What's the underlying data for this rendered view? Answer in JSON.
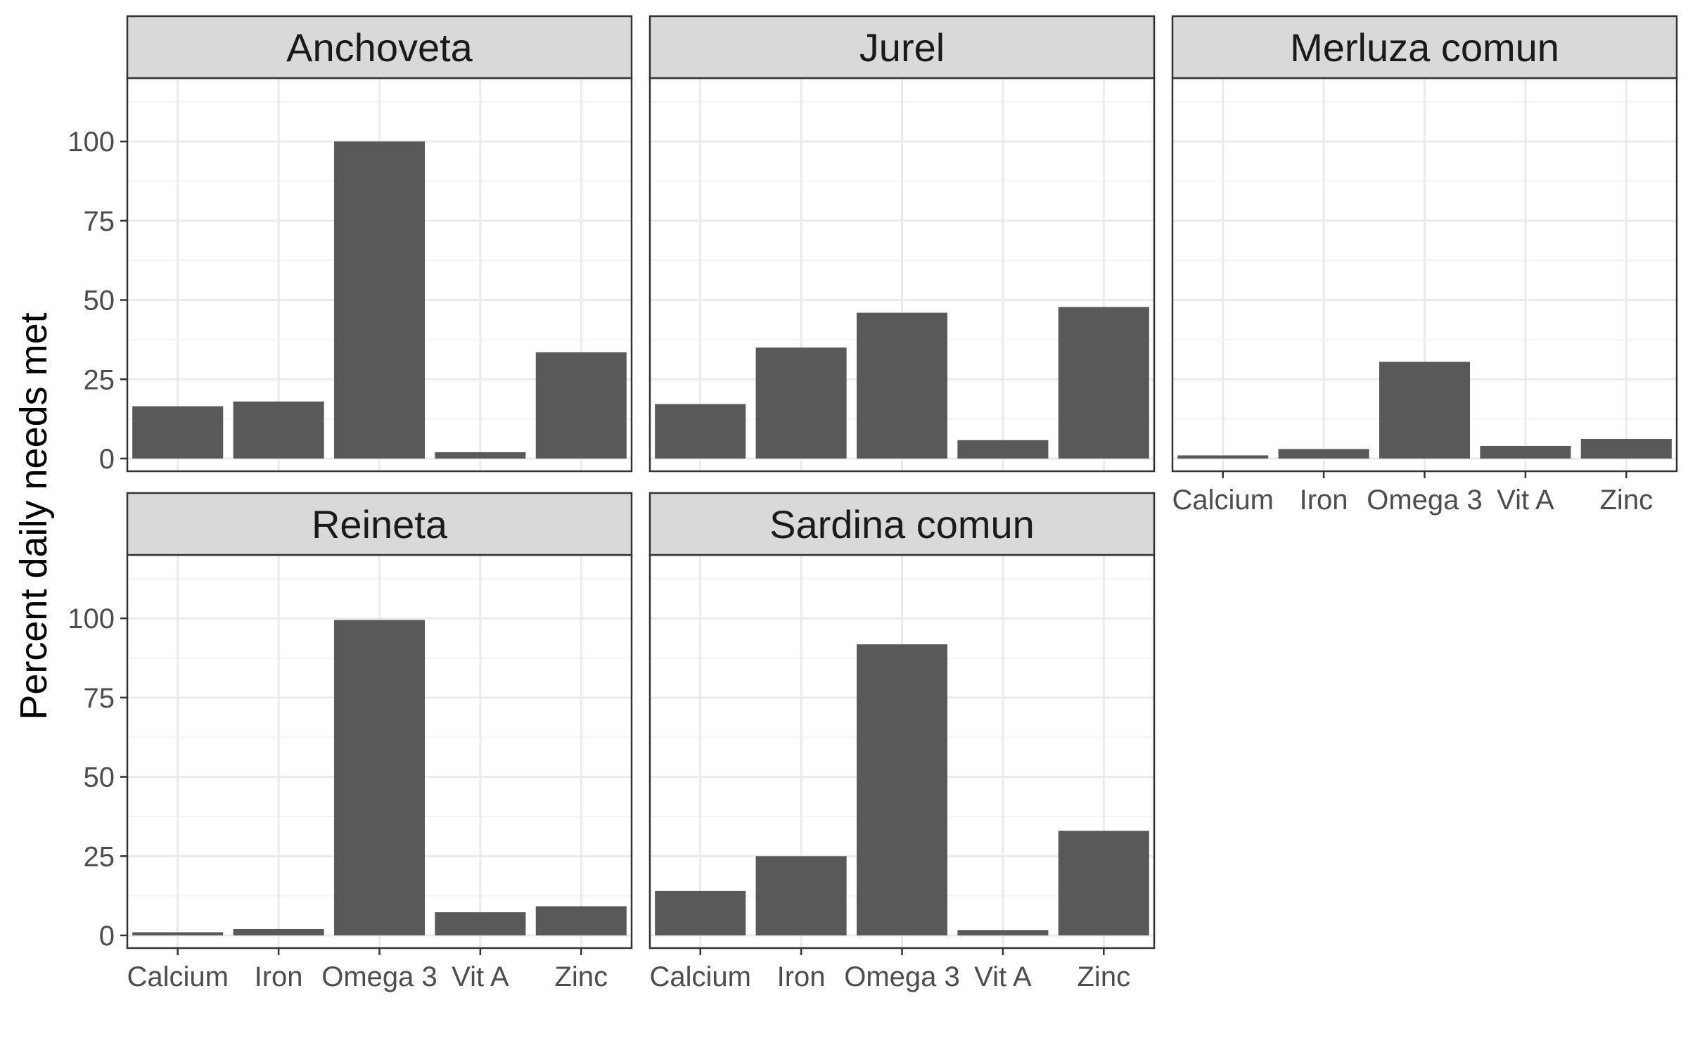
{
  "chart_data": {
    "type": "bar",
    "layout": "facet_wrap",
    "facet_columns": 3,
    "ylabel": "Percent daily needs met",
    "xlabel": "",
    "ylim": [
      -4,
      120
    ],
    "y_ticks": [
      0,
      25,
      50,
      75,
      100
    ],
    "categories": [
      "Calcium",
      "Iron",
      "Omega 3",
      "Vit A",
      "Zinc"
    ],
    "grid": true,
    "legend": "none",
    "colors": {
      "bar": "#595959",
      "strip_background": "#d9d9d9",
      "panel_border": "#333333",
      "grid_major": "#ebebeb",
      "grid_minor": "#f4f4f4",
      "tick_label": "#4d4d4d"
    },
    "facets": [
      {
        "title": "Anchoveta",
        "values": [
          16.5,
          18,
          100,
          2,
          33.5
        ]
      },
      {
        "title": "Jurel",
        "values": [
          17.2,
          35,
          46,
          5.8,
          47.8
        ]
      },
      {
        "title": "Merluza comun",
        "values": [
          1,
          3,
          30.5,
          4,
          6.2
        ]
      },
      {
        "title": "Reineta",
        "values": [
          1,
          2,
          99.5,
          7.3,
          9.2
        ]
      },
      {
        "title": "Sardina comun",
        "values": [
          14,
          25,
          91.8,
          1.7,
          33
        ]
      }
    ]
  }
}
